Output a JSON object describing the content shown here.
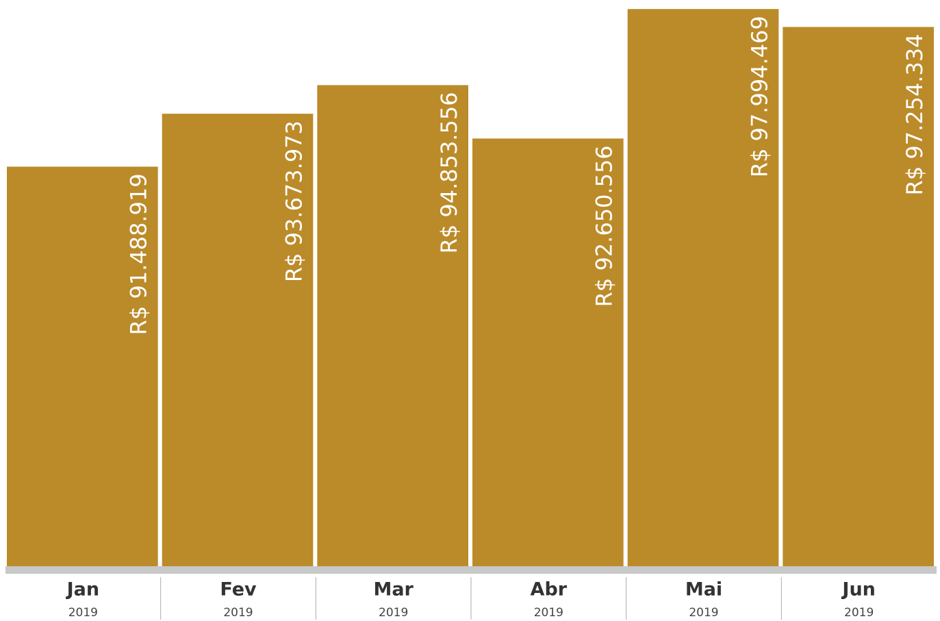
{
  "chart_data": {
    "type": "bar",
    "categories": [
      "Jan",
      "Fev",
      "Mar",
      "Abr",
      "Mai",
      "Jun"
    ],
    "category_years": [
      "2019",
      "2019",
      "2019",
      "2019",
      "2019",
      "2019"
    ],
    "values": [
      91488919,
      93673973,
      94853556,
      92650556,
      97994469,
      97254334
    ],
    "value_labels": [
      "R$ 91.488.919",
      "R$ 93.673.973",
      "R$ 94.853.556",
      "R$ 92.650.556",
      "R$ 97.994.469",
      "R$ 97.254.334"
    ],
    "color": "#bb8b2a",
    "ylim": [
      75000000,
      98000000
    ]
  }
}
